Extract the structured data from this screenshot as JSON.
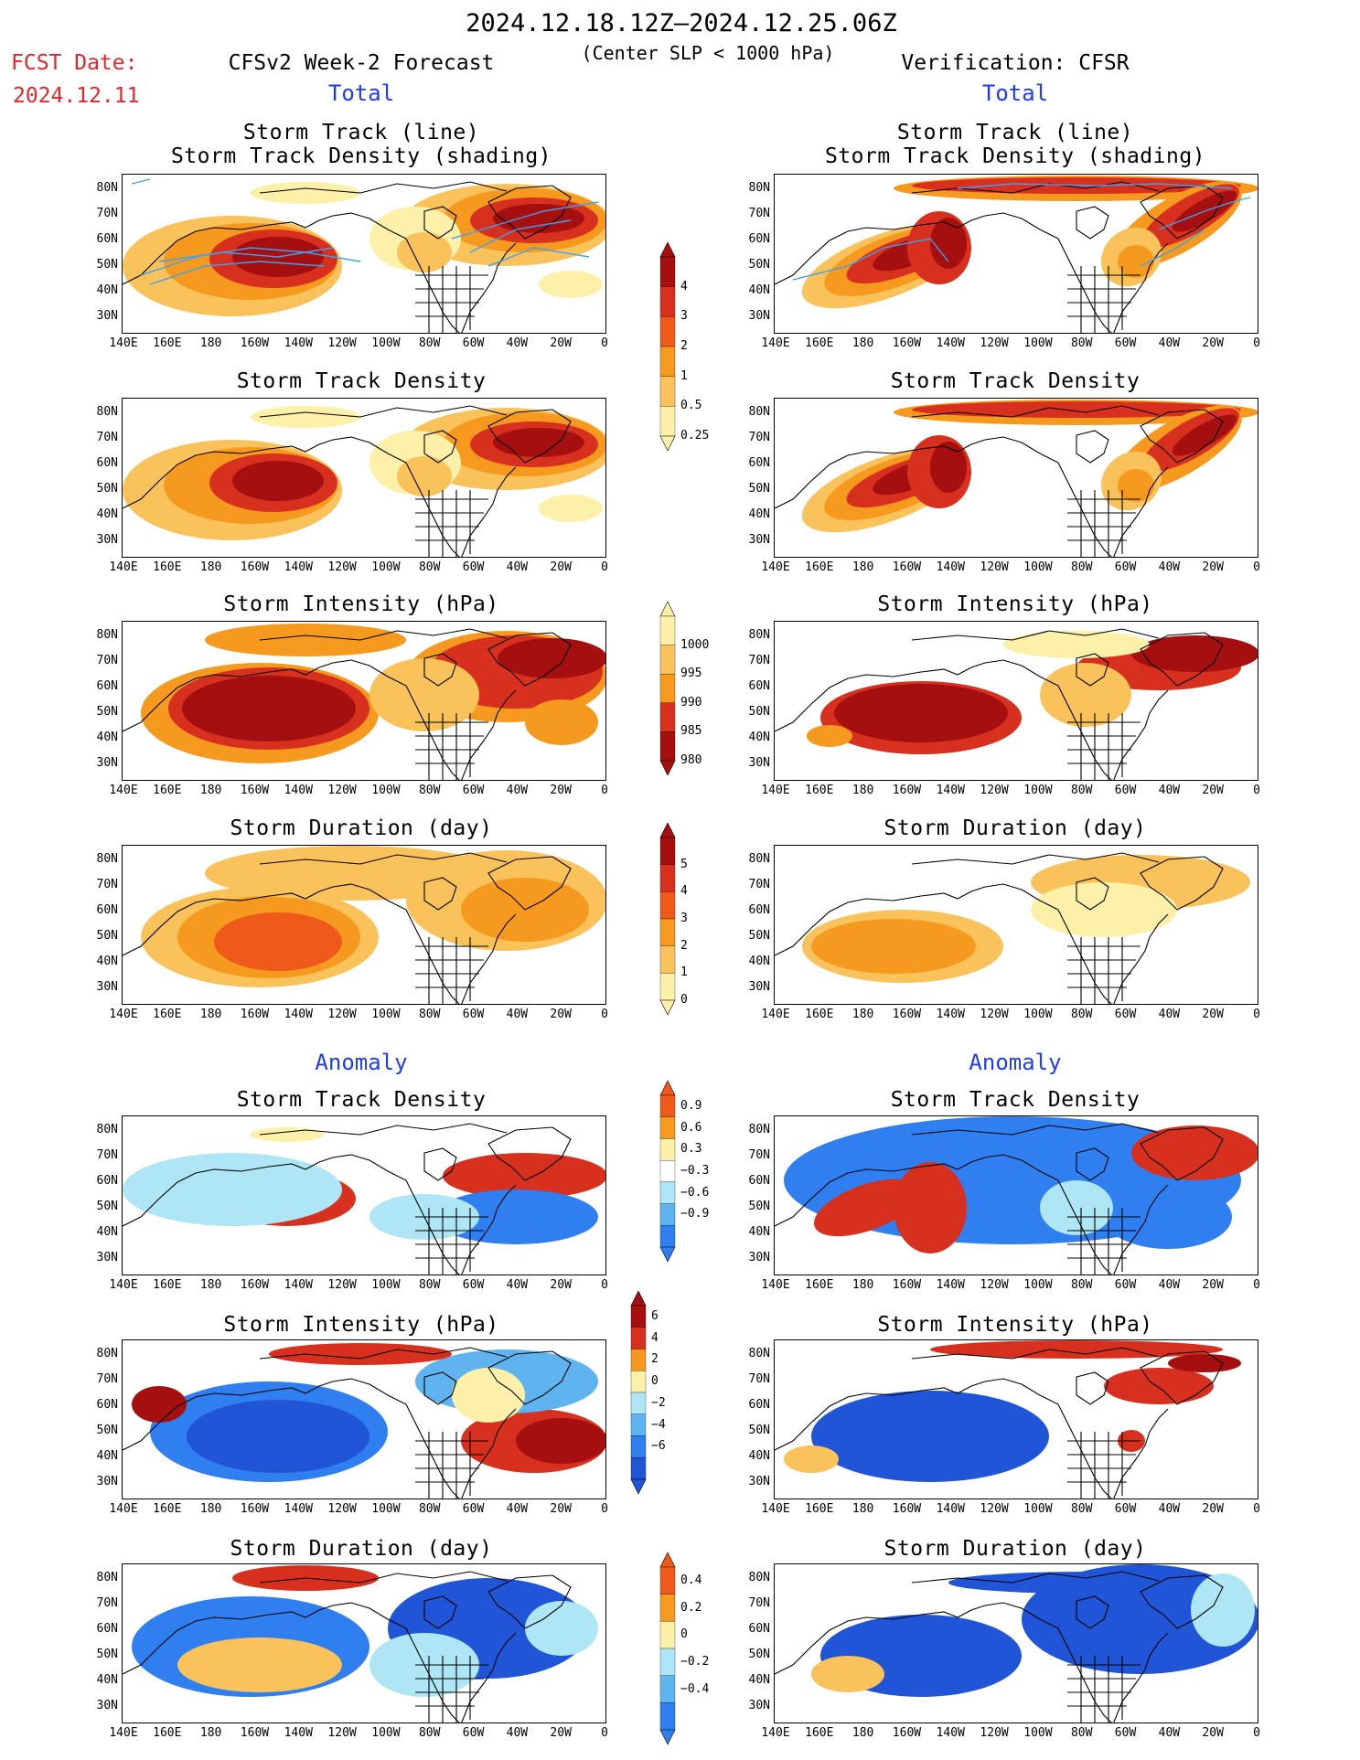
{
  "header": {
    "period": "2024.12.18.12Z–2024.12.25.06Z",
    "subtitle": "(Center SLP < 1000 hPa)",
    "fcst_label": "FCST Date:",
    "fcst_date": "2024.12.11",
    "left_title": "CFSv2 Week-2 Forecast",
    "right_title": "Verification: CFSR"
  },
  "sections": {
    "total": "Total",
    "anomaly": "Anomaly"
  },
  "panel_titles": {
    "track_line": "Storm Track (line)",
    "track_shading": "Storm Track Density (shading)",
    "density": "Storm Track Density",
    "intensity": "Storm Intensity (hPa)",
    "duration": "Storm Duration (day)"
  },
  "axes": {
    "lat_labels": [
      "80N",
      "70N",
      "60N",
      "50N",
      "40N",
      "30N"
    ],
    "lon_labels": [
      "140E",
      "160E",
      "180",
      "160W",
      "140W",
      "120W",
      "100W",
      "80W",
      "60W",
      "40W",
      "20W",
      "0"
    ]
  },
  "colorbars": {
    "density_total": {
      "labels": [
        "4",
        "3",
        "2",
        "1",
        "0.5",
        "0.25"
      ]
    },
    "intensity_total": {
      "labels": [
        "1000",
        "995",
        "990",
        "985",
        "980"
      ]
    },
    "duration_total": {
      "labels": [
        "5",
        "4",
        "3",
        "2",
        "1",
        "0"
      ]
    },
    "density_anom": {
      "labels": [
        "0.9",
        "0.6",
        "0.3",
        "−0.3",
        "−0.6",
        "−0.9"
      ]
    },
    "intensity_anom": {
      "labels": [
        "6",
        "4",
        "2",
        "0",
        "−2",
        "−4",
        "−6"
      ]
    },
    "duration_anom": {
      "labels": [
        "0.4",
        "0.2",
        "0",
        "−0.2",
        "−0.4"
      ]
    }
  },
  "colors": {
    "dark_red": "#a50f0f",
    "red": "#d7301f",
    "orange_red": "#ef5a1b",
    "orange": "#f59a1e",
    "light_orange": "#f9c25a",
    "pale_yellow": "#fdf0a8",
    "light_blue": "#aee6f5",
    "mid_blue": "#5fb4ef",
    "blue": "#2f7ff0",
    "dark_blue": "#1f55d6",
    "track_line": "#3fa0f0"
  }
}
